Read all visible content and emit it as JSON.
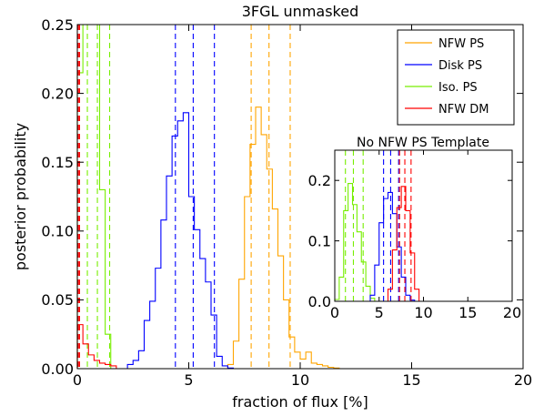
{
  "chart_data": [
    {
      "type": "step-histogram",
      "title": "3FGL unmasked",
      "xlabel": "fraction of flux [%]",
      "ylabel": "posterior probability",
      "xlim": [
        0,
        20
      ],
      "ylim": [
        0,
        0.25
      ],
      "xticks": [
        "0",
        "5",
        "10",
        "15",
        "20"
      ],
      "yticks": [
        "0.00",
        "0.05",
        "0.10",
        "0.15",
        "0.20",
        "0.25"
      ],
      "legend_position": "top-right",
      "series": [
        {
          "name": "NFW PS",
          "color": "#ffa500",
          "bin_edges": [
            6.75,
            7.0,
            7.25,
            7.5,
            7.75,
            8.0,
            8.25,
            8.5,
            8.75,
            9.0,
            9.25,
            9.5,
            9.75,
            10.0,
            10.25,
            10.5,
            10.75,
            11.0,
            11.25,
            11.5,
            11.75
          ],
          "heights": [
            0.003,
            0.02,
            0.065,
            0.125,
            0.163,
            0.19,
            0.17,
            0.145,
            0.116,
            0.082,
            0.05,
            0.023,
            0.012,
            0.007,
            0.012,
            0.004,
            0.003,
            0.002,
            0.001,
            0.0005
          ],
          "quantiles": [
            7.8,
            8.6,
            9.55
          ]
        },
        {
          "name": "Disk PS",
          "color": "#0000ff",
          "bin_edges": [
            2.25,
            2.5,
            2.75,
            3.0,
            3.25,
            3.5,
            3.75,
            4.0,
            4.25,
            4.5,
            4.75,
            5.0,
            5.25,
            5.5,
            5.75,
            6.0,
            6.25,
            6.5,
            6.75,
            7.0
          ],
          "heights": [
            0.003,
            0.006,
            0.013,
            0.035,
            0.049,
            0.073,
            0.108,
            0.14,
            0.169,
            0.18,
            0.186,
            0.125,
            0.101,
            0.08,
            0.063,
            0.039,
            0.009,
            0.002,
            0.0005
          ],
          "quantiles": [
            4.4,
            5.2,
            6.15
          ]
        },
        {
          "name": "Iso. PS",
          "color": "#77ee00",
          "bin_edges": [
            0.0,
            0.25,
            0.5,
            0.75,
            1.0,
            1.25,
            1.5,
            1.75
          ],
          "heights": [
            0.215,
            0.25,
            0.25,
            0.25,
            0.13,
            0.025,
            0.0
          ],
          "quantiles": [
            0.45,
            0.9,
            1.45
          ]
        },
        {
          "name": "NFW DM",
          "color": "#ff0000",
          "bin_edges": [
            0.0,
            0.25,
            0.5,
            0.75,
            1.0,
            1.25,
            1.5,
            1.75
          ],
          "heights": [
            0.032,
            0.018,
            0.01,
            0.006,
            0.004,
            0.003,
            0.002
          ],
          "quantiles": [
            0.02,
            0.05,
            0.1
          ]
        }
      ]
    },
    {
      "type": "step-histogram",
      "title": "No NFW PS Template",
      "xlim": [
        0,
        20
      ],
      "ylim": [
        0,
        0.25
      ],
      "xticks": [
        "0",
        "5",
        "10",
        "15",
        "20"
      ],
      "yticks": [
        "0.0",
        "0.1",
        "0.2"
      ],
      "series": [
        {
          "name": "Iso. PS",
          "color": "#77ee00",
          "bin_edges": [
            0.0,
            0.5,
            1.0,
            1.5,
            2.0,
            2.5,
            3.0,
            3.5,
            4.0,
            4.5
          ],
          "heights": [
            0.003,
            0.04,
            0.15,
            0.195,
            0.16,
            0.115,
            0.065,
            0.025,
            0.005
          ],
          "quantiles": [
            1.2,
            2.1,
            3.2
          ]
        },
        {
          "name": "Disk PS",
          "color": "#0000ff",
          "bin_edges": [
            4.0,
            4.5,
            5.0,
            5.5,
            6.0,
            6.5,
            7.0,
            7.5,
            8.0,
            8.5,
            9.0
          ],
          "heights": [
            0.01,
            0.06,
            0.13,
            0.17,
            0.18,
            0.145,
            0.09,
            0.04,
            0.01,
            0.002
          ],
          "quantiles": [
            5.5,
            6.3,
            7.2
          ]
        },
        {
          "name": "NFW DM",
          "color": "#ff0000",
          "bin_edges": [
            6.0,
            6.5,
            7.0,
            7.5,
            8.0,
            8.5,
            9.0,
            9.5
          ],
          "heights": [
            0.02,
            0.085,
            0.155,
            0.19,
            0.15,
            0.08,
            0.02
          ],
          "quantiles": [
            7.3,
            7.9,
            8.6
          ]
        }
      ]
    }
  ]
}
